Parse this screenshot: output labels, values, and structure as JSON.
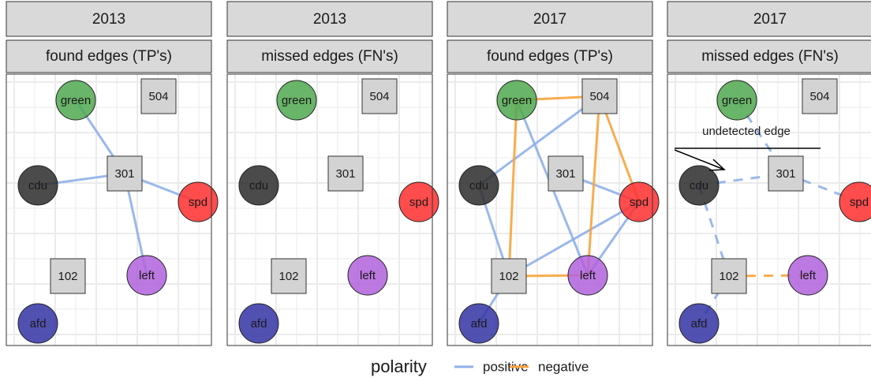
{
  "nodes": [
    {
      "label": "green",
      "shape": "circle",
      "color": "#4fa84f"
    },
    {
      "label": "504",
      "shape": "square",
      "color": "#d3d3d3"
    },
    {
      "label": "cdu",
      "shape": "circle",
      "color": "#2b2b2b"
    },
    {
      "label": "301",
      "shape": "square",
      "color": "#d3d3d3"
    },
    {
      "label": "spd",
      "shape": "circle",
      "color": "#ff2e2e"
    },
    {
      "label": "102",
      "shape": "square",
      "color": "#d3d3d3"
    },
    {
      "label": "left",
      "shape": "circle",
      "color": "#b062dc"
    },
    {
      "label": "afd",
      "shape": "circle",
      "color": "#3232a4"
    }
  ],
  "panels": [
    {
      "year": "2013",
      "label": "found edges (TP's)",
      "dashed": false,
      "edges": [
        [
          "green",
          "301",
          "positive"
        ],
        [
          "cdu",
          "301",
          "positive"
        ],
        [
          "301",
          "spd",
          "positive"
        ],
        [
          "301",
          "left",
          "positive"
        ]
      ]
    },
    {
      "year": "2013",
      "label": "missed edges (FN's)",
      "dashed": false,
      "edges": []
    },
    {
      "year": "2017",
      "label": "found edges (TP's)",
      "dashed": false,
      "edges": [
        [
          "cdu",
          "504",
          "positive"
        ],
        [
          "green",
          "left",
          "positive"
        ],
        [
          "301",
          "spd",
          "positive"
        ],
        [
          "102",
          "spd",
          "positive"
        ],
        [
          "left",
          "spd",
          "positive"
        ],
        [
          "afd",
          "102",
          "positive"
        ],
        [
          "cdu",
          "102",
          "positive"
        ],
        [
          "green",
          "504",
          "negative"
        ],
        [
          "green",
          "102",
          "negative"
        ],
        [
          "504",
          "left",
          "negative"
        ],
        [
          "504",
          "spd",
          "negative"
        ],
        [
          "102",
          "left",
          "negative"
        ]
      ]
    },
    {
      "year": "2017",
      "label": "missed edges (FN's)",
      "dashed": true,
      "edges": [
        [
          "green",
          "301",
          "positive"
        ],
        [
          "cdu",
          "301",
          "positive"
        ],
        [
          "301",
          "spd",
          "positive"
        ],
        [
          "cdu",
          "102",
          "positive"
        ],
        [
          "102",
          "afd",
          "positive"
        ],
        [
          "102",
          "left",
          "negative"
        ]
      ],
      "annotation": "undetected edge"
    }
  ],
  "legend": {
    "title": "polarity",
    "items": [
      {
        "name": "positive",
        "color": "#8fb0ea"
      },
      {
        "name": "negative",
        "color": "#f7a43c"
      }
    ]
  }
}
